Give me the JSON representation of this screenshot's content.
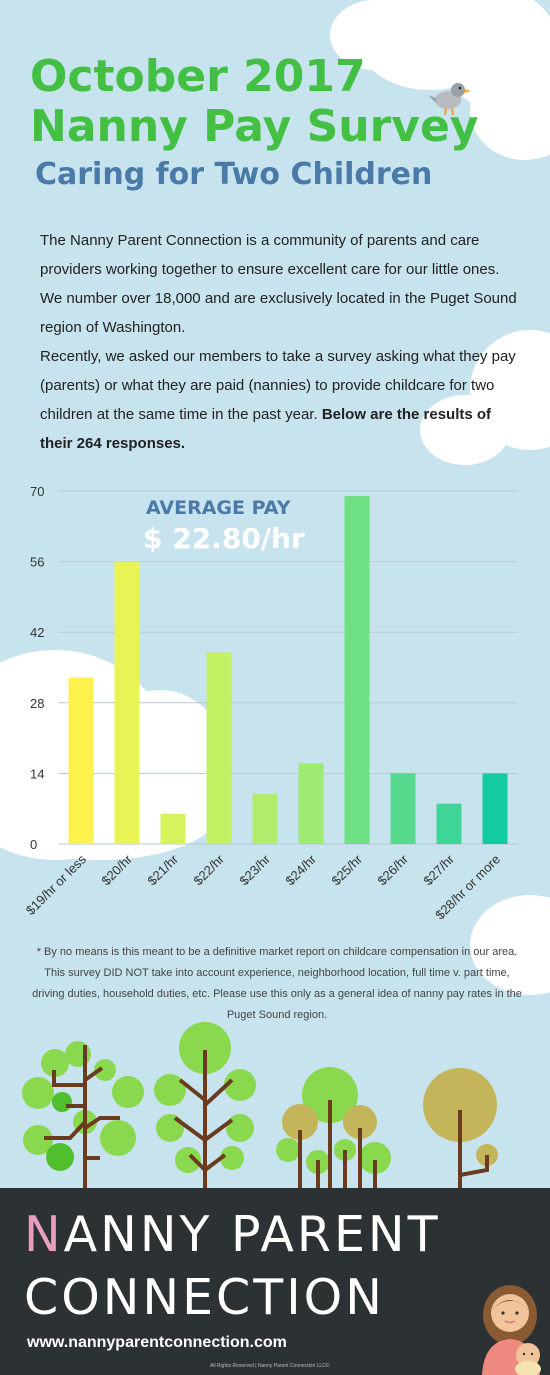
{
  "header": {
    "title_line1": "October 2017",
    "title_line2": "Nanny Pay Survey",
    "subtitle": "Caring for Two Children"
  },
  "intro": {
    "p1": "The Nanny Parent Connection is a community of parents and care providers working together to ensure excellent care for our little ones. We number over 18,000 and are exclusively located in the Puget Sound region of Washington.",
    "p2_text": "Recently, we asked our members to take a survey asking what they pay (parents) or what they are paid (nannies) to provide childcare for two children at the same time in the past year. ",
    "p2_bold": "Below are the results of their 264 responses."
  },
  "average": {
    "label": "AVERAGE PAY",
    "value": "$ 22.80/hr"
  },
  "chart_data": {
    "type": "bar",
    "categories": [
      "$19/hr or less",
      "$20/hr",
      "$21/hr",
      "$22/hr",
      "$23/hr",
      "$24/hr",
      "$25/hr",
      "$26/hr",
      "$27/hr",
      "$28/hr or more"
    ],
    "values": [
      33,
      56,
      6,
      38,
      10,
      16,
      69,
      14,
      8,
      14
    ],
    "ylim": [
      0,
      70
    ],
    "yticks": [
      0,
      14,
      28,
      42,
      56,
      70
    ],
    "colors": [
      "#fdf24c",
      "#e8f455",
      "#d6f25d",
      "#c4f064",
      "#b1ec6c",
      "#9eea72",
      "#6edf82",
      "#57d98d",
      "#3ed597",
      "#14ca9f"
    ],
    "grid": true,
    "legend": "none"
  },
  "footnote": "* By no means is this meant to be a definitive market report on childcare compensation in our area. This survey DID NOT take into account experience, neighborhood location, full time v. part time, driving duties, household duties, etc. Please use this only as a general idea of nanny pay rates in the Puget Sound region.",
  "footer": {
    "brand_first_letter": "N",
    "brand_line1_rest": "ANNY PARENT",
    "brand_line2": "CONNECTION",
    "website": "www.nannyparentconnection.com",
    "rights": "All Rights Reserved | Nanny Parent Connection LLC©"
  },
  "icons": [
    "bird-icon",
    "tree-icon",
    "mother-baby-icon"
  ]
}
